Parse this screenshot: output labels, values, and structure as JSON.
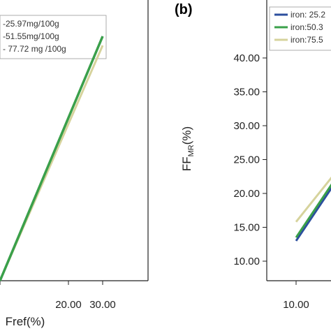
{
  "chart_data": [
    {
      "type": "line",
      "xlabel": "Fref(%)",
      "ylabel": "",
      "x_ticks": [
        "20.00",
        "30.00"
      ],
      "legend": [
        "-25.97mg/100g",
        "-51.55mg/100g",
        "- 77.72 mg /100g"
      ],
      "legend_placement": "top-left",
      "grid": false,
      "series": [
        {
          "name": "-25.97mg/100g",
          "color": "#2c4f9e",
          "x": [
            0,
            30
          ],
          "y": [
            0,
            40
          ]
        },
        {
          "name": "-51.55mg/100g",
          "color": "#3aa04a",
          "x": [
            0,
            30
          ],
          "y": [
            0,
            40
          ]
        },
        {
          "name": "- 77.72 mg /100g",
          "color": "#d6d39c",
          "x": [
            0,
            30
          ],
          "y": [
            0,
            38.5
          ]
        }
      ]
    },
    {
      "type": "line",
      "panel_label": "(b)",
      "xlabel": "",
      "ylabel": "FF",
      "ylabel_sub": "MR",
      "ylabel_suffix": "(%)",
      "x_ticks": [
        "10.00"
      ],
      "y_ticks": [
        "10.00",
        "15.00",
        "20.00",
        "25.00",
        "30.00",
        "35.00",
        "40.00"
      ],
      "ylim": [
        10,
        40
      ],
      "legend": [
        "iron: 25.2",
        "iron:50.3",
        "iron:75.5"
      ],
      "legend_placement": "top-right",
      "grid": false,
      "series": [
        {
          "name": "iron: 25.2",
          "color": "#2c4f9e",
          "x": [
            10,
            10.5
          ],
          "y": [
            13.0,
            21.0
          ]
        },
        {
          "name": "iron:50.3",
          "color": "#3aa04a",
          "x": [
            10,
            10.5
          ],
          "y": [
            13.5,
            21.5
          ]
        },
        {
          "name": "iron:75.5",
          "color": "#d6d39c",
          "x": [
            10,
            10.5
          ],
          "y": [
            15.8,
            22.5
          ]
        }
      ]
    }
  ]
}
